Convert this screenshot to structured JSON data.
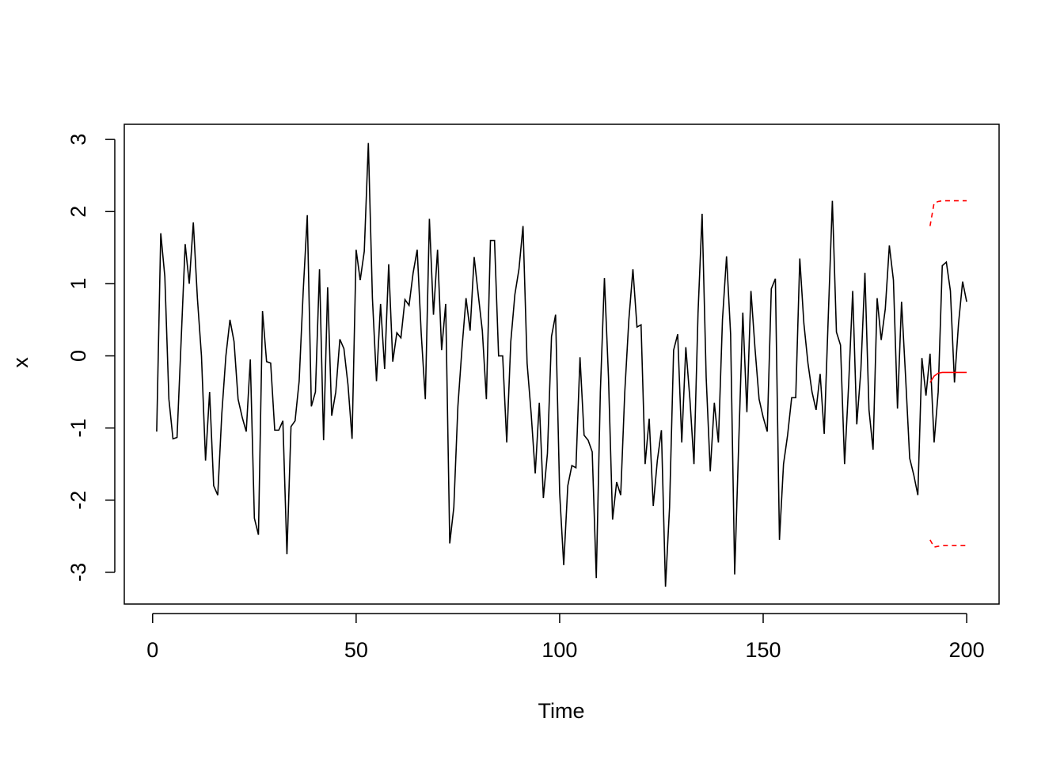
{
  "chart_data": {
    "type": "line",
    "xlabel": "Time",
    "ylabel": "x",
    "xlim": [
      -6.96,
      207.96
    ],
    "ylim": [
      -3.44,
      3.21
    ],
    "xticks": [
      0,
      50,
      100,
      150,
      200
    ],
    "yticks": [
      -3,
      -2,
      -1,
      0,
      1,
      2,
      3
    ],
    "series": [
      {
        "color": "#000000",
        "linestyle": "solid",
        "x": [
          1,
          2,
          3,
          4,
          5,
          6,
          7,
          8,
          9,
          10,
          11,
          12,
          13,
          14,
          15,
          16,
          17,
          18,
          19,
          20,
          21,
          22,
          23,
          24,
          25,
          26,
          27,
          28,
          29,
          30,
          31,
          32,
          33,
          34,
          35,
          36,
          37,
          38,
          39,
          40,
          41,
          42,
          43,
          44,
          45,
          46,
          47,
          48,
          49,
          50,
          51,
          52,
          53,
          54,
          55,
          56,
          57,
          58,
          59,
          60,
          61,
          62,
          63,
          64,
          65,
          66,
          67,
          68,
          69,
          70,
          71,
          72,
          73,
          74,
          75,
          76,
          77,
          78,
          79,
          80,
          81,
          82,
          83,
          84,
          85,
          86,
          87,
          88,
          89,
          90,
          91,
          92,
          93,
          94,
          95,
          96,
          97,
          98,
          99,
          100,
          101,
          102,
          103,
          104,
          105,
          106,
          107,
          108,
          109,
          110,
          111,
          112,
          113,
          114,
          115,
          116,
          117,
          118,
          119,
          120,
          121,
          122,
          123,
          124,
          125,
          126,
          127,
          128,
          129,
          130,
          131,
          132,
          133,
          134,
          135,
          136,
          137,
          138,
          139,
          140,
          141,
          142,
          143,
          144,
          145,
          146,
          147,
          148,
          149,
          150,
          151,
          152,
          153,
          154,
          155,
          156,
          157,
          158,
          159,
          160,
          161,
          162,
          163,
          164,
          165,
          166,
          167,
          168,
          169,
          170,
          171,
          172,
          173,
          174,
          175,
          176,
          177,
          178,
          179,
          180,
          181,
          182,
          183,
          184,
          185,
          186,
          187,
          188,
          189,
          190,
          191,
          192,
          193,
          194,
          195,
          196,
          197,
          198,
          199,
          200
        ],
        "values": [
          -1.05,
          1.7,
          1.1,
          -0.6,
          -1.15,
          -1.13,
          0.2,
          1.55,
          1.0,
          1.85,
          0.8,
          0.0,
          -1.45,
          -0.5,
          -1.8,
          -1.93,
          -0.8,
          0.0,
          0.5,
          0.2,
          -0.6,
          -0.85,
          -1.05,
          -0.05,
          -2.25,
          -2.48,
          0.62,
          -0.08,
          -0.1,
          -1.03,
          -1.03,
          -0.9,
          -2.75,
          -0.98,
          -0.9,
          -0.35,
          0.9,
          1.95,
          -0.7,
          -0.5,
          1.2,
          -1.17,
          0.95,
          -0.83,
          -0.5,
          0.23,
          0.1,
          -0.4,
          -1.15,
          1.47,
          1.05,
          1.45,
          2.95,
          0.8,
          -0.35,
          0.72,
          -0.18,
          1.27,
          -0.08,
          0.32,
          0.25,
          0.78,
          0.7,
          1.15,
          1.47,
          0.3,
          -0.6,
          1.9,
          0.57,
          1.47,
          0.08,
          0.72,
          -2.6,
          -2.1,
          -0.7,
          0.1,
          0.8,
          0.35,
          1.37,
          0.85,
          0.35,
          -0.6,
          1.6,
          1.6,
          0.0,
          0.0,
          -1.2,
          0.2,
          0.85,
          1.2,
          1.8,
          -0.1,
          -0.8,
          -1.63,
          -0.65,
          -1.97,
          -1.35,
          0.27,
          0.57,
          -1.9,
          -2.9,
          -1.8,
          -1.52,
          -1.55,
          -0.02,
          -1.1,
          -1.17,
          -1.33,
          -3.08,
          -0.5,
          1.08,
          -0.3,
          -2.27,
          -1.75,
          -1.93,
          -0.5,
          0.5,
          1.2,
          0.4,
          0.43,
          -1.5,
          -0.87,
          -2.08,
          -1.45,
          -1.03,
          -3.2,
          -2.1,
          0.08,
          0.3,
          -1.2,
          0.12,
          -0.6,
          -1.5,
          0.6,
          1.97,
          -0.3,
          -1.6,
          -0.65,
          -1.2,
          0.5,
          1.38,
          0.3,
          -3.03,
          -1.2,
          0.6,
          -0.78,
          0.9,
          0.1,
          -0.6,
          -0.85,
          -1.05,
          0.93,
          1.07,
          -2.55,
          -1.5,
          -1.1,
          -0.58,
          -0.58,
          1.35,
          0.45,
          -0.1,
          -0.5,
          -0.75,
          -0.25,
          -1.08,
          0.55,
          2.15,
          0.33,
          0.15,
          -1.5,
          -0.4,
          0.9,
          -0.95,
          -0.2,
          1.15,
          -0.75,
          -1.3,
          0.8,
          0.22,
          0.65,
          1.53,
          1.05,
          -0.73,
          0.75,
          -0.3,
          -1.42,
          -1.65,
          -1.93,
          -0.03,
          -0.55,
          0.03,
          -1.2,
          -0.5,
          1.25,
          1.3,
          0.9,
          -0.37,
          0.45,
          1.03,
          0.75
        ]
      },
      {
        "color": "#ff0000",
        "linestyle": "solid",
        "x": [
          191,
          192,
          193,
          194,
          195,
          196,
          197,
          198,
          199,
          200
        ],
        "values": [
          -0.37,
          -0.28,
          -0.24,
          -0.23,
          -0.23,
          -0.23,
          -0.23,
          -0.23,
          -0.23,
          -0.23
        ]
      },
      {
        "color": "#ff0000",
        "linestyle": "dashed",
        "x": [
          191,
          192,
          193,
          194,
          195,
          196,
          197,
          198,
          199,
          200
        ],
        "values": [
          1.8,
          2.12,
          2.14,
          2.15,
          2.15,
          2.15,
          2.15,
          2.15,
          2.15,
          2.15
        ]
      },
      {
        "color": "#ff0000",
        "linestyle": "dashed",
        "x": [
          191,
          192,
          193,
          194,
          195,
          196,
          197,
          198,
          199,
          200
        ],
        "values": [
          -2.55,
          -2.65,
          -2.64,
          -2.63,
          -2.63,
          -2.63,
          -2.63,
          -2.63,
          -2.63,
          -2.63
        ]
      }
    ]
  }
}
